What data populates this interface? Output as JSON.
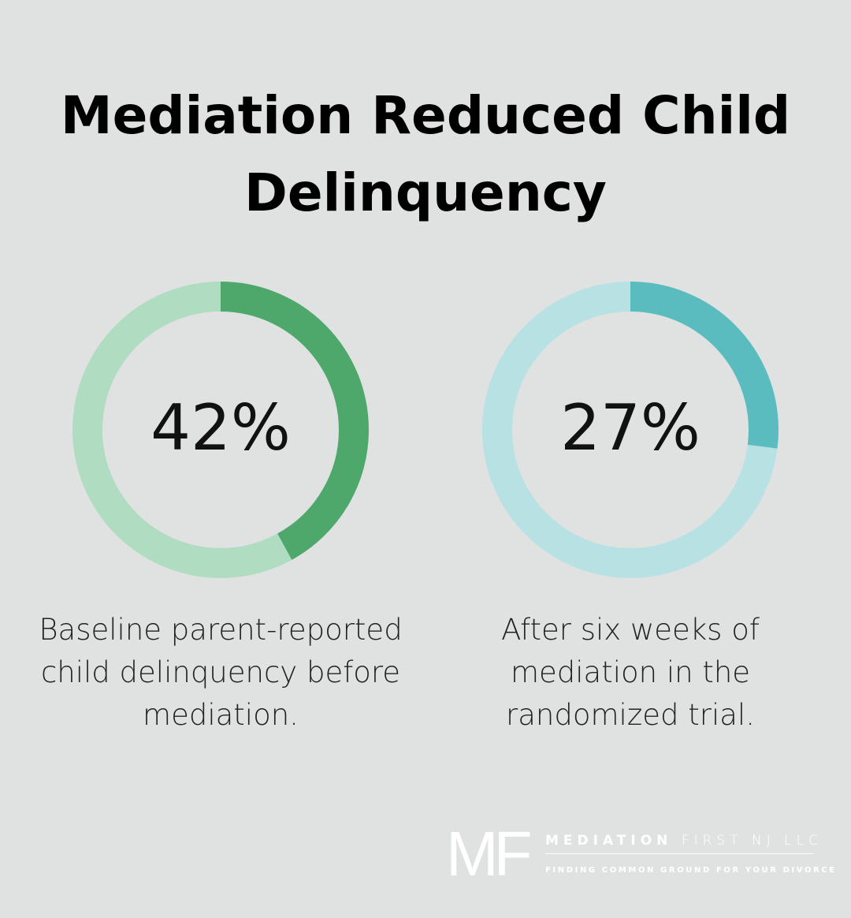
{
  "chart_data": [
    {
      "type": "pie",
      "variant": "donut",
      "value_label": "42%",
      "values": [
        42,
        58
      ],
      "caption": "Baseline parent-reported child delinquency before mediation.",
      "colors": {
        "fill": "#4ea86c",
        "track": "#b0dcc2"
      }
    },
    {
      "type": "pie",
      "variant": "donut",
      "value_label": "27%",
      "values": [
        27,
        73
      ],
      "caption": "After six weeks of mediation in the randomized trial.",
      "colors": {
        "fill": "#5bbcc0",
        "track": "#b7e1e3"
      }
    }
  ],
  "title": "Mediation Reduced Child Delinquency",
  "logo": {
    "mark": "MF",
    "name_bold": "MEDIATION",
    "name_light": "FIRST NJ LLC",
    "tagline": "FINDING COMMON GROUND FOR YOUR DIVORCE"
  },
  "colors": {
    "background": "#e0e2e1"
  }
}
